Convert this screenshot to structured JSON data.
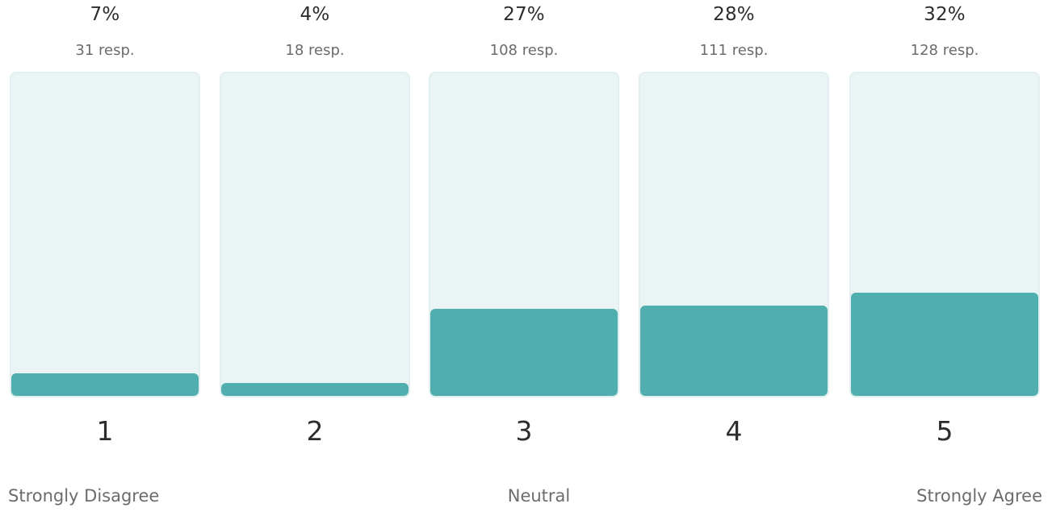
{
  "chart_data": {
    "type": "bar",
    "categories": [
      "1",
      "2",
      "3",
      "4",
      "5"
    ],
    "series": [
      {
        "values": [
          7,
          4,
          27,
          28,
          32
        ]
      }
    ],
    "percent_labels": [
      "7%",
      "4%",
      "27%",
      "28%",
      "32%"
    ],
    "response_labels": [
      "31 resp.",
      "18 resp.",
      "108 resp.",
      "111 resp.",
      "128 resp."
    ],
    "responses": [
      31,
      18,
      108,
      111,
      128
    ],
    "ylim": [
      0,
      100
    ],
    "scale_labels": {
      "left": "Strongly Disagree",
      "middle": "Neutral",
      "right": "Strongly Agree"
    },
    "colors": {
      "fill": "#50afae",
      "track": "#eaf4f5"
    }
  }
}
